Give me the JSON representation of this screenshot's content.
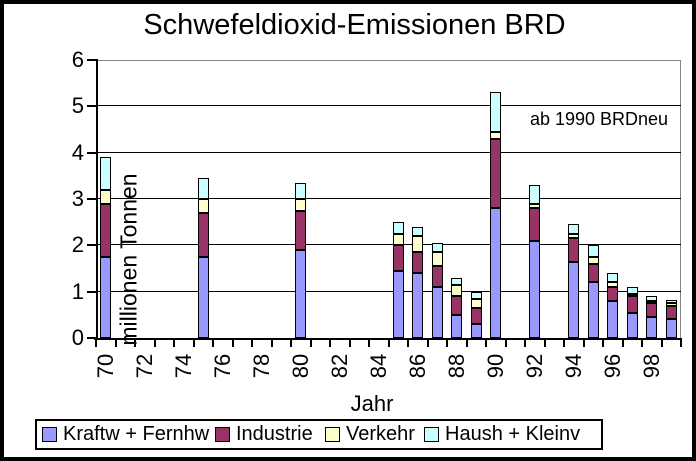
{
  "title": "Schwefeldioxid-Emissionen BRD",
  "annotation": "ab 1990 BRDneu",
  "y_axis": {
    "label": "millionen Tonnen",
    "tick_labels": [
      "0",
      "1",
      "2",
      "3",
      "4",
      "5",
      "6"
    ]
  },
  "x_axis": {
    "label": "Jahr",
    "start_year": 70,
    "end_year": 99,
    "tick_labels": [
      "70",
      "72",
      "74",
      "76",
      "78",
      "80",
      "82",
      "84",
      "86",
      "88",
      "90",
      "92",
      "94",
      "96",
      "98"
    ]
  },
  "legend": {
    "position": "bottom",
    "items": [
      {
        "label": "Kraftw + Fernhw",
        "color": "#9999FF"
      },
      {
        "label": "Industrie",
        "color": "#993366"
      },
      {
        "label": "Verkehr",
        "color": "#FFFFCC"
      },
      {
        "label": "Haush + Kleinv",
        "color": "#CCFFFF"
      }
    ]
  },
  "chart_data": {
    "type": "bar",
    "stacked": true,
    "title": "Schwefeldioxid-Emissionen BRD",
    "xlabel": "Jahr",
    "ylabel": "millionen Tonnen",
    "ylim": [
      0,
      6
    ],
    "x_category_range": [
      70,
      99
    ],
    "grid": true,
    "legend_position": "bottom",
    "annotation": "ab 1990 BRDneu",
    "categories": [
      70,
      75,
      80,
      85,
      86,
      87,
      88,
      89,
      90,
      92,
      94,
      95,
      96,
      97,
      98,
      99
    ],
    "series": [
      {
        "name": "Kraftw + Fernhw",
        "color": "#9999FF",
        "values": [
          1.75,
          1.75,
          1.9,
          1.45,
          1.4,
          1.1,
          0.5,
          0.3,
          2.8,
          2.1,
          1.65,
          1.2,
          0.8,
          0.55,
          0.45,
          0.4
        ]
      },
      {
        "name": "Industrie",
        "color": "#993366",
        "values": [
          1.15,
          0.95,
          0.85,
          0.55,
          0.45,
          0.45,
          0.4,
          0.35,
          1.5,
          0.7,
          0.5,
          0.4,
          0.3,
          0.35,
          0.3,
          0.3
        ]
      },
      {
        "name": "Verkehr",
        "color": "#FFFFCC",
        "values": [
          0.3,
          0.3,
          0.25,
          0.25,
          0.35,
          0.3,
          0.25,
          0.2,
          0.15,
          0.1,
          0.1,
          0.15,
          0.1,
          0.05,
          0.05,
          0.05
        ]
      },
      {
        "name": "Haush + Kleinv",
        "color": "#CCFFFF",
        "values": [
          0.7,
          0.45,
          0.35,
          0.25,
          0.2,
          0.2,
          0.15,
          0.15,
          0.85,
          0.4,
          0.2,
          0.25,
          0.2,
          0.15,
          0.1,
          0.07
        ]
      }
    ],
    "totals": [
      3.9,
      3.45,
      3.35,
      2.5,
      2.4,
      2.05,
      1.3,
      1.0,
      5.3,
      3.3,
      2.45,
      2.0,
      1.4,
      1.1,
      0.9,
      0.82
    ]
  }
}
